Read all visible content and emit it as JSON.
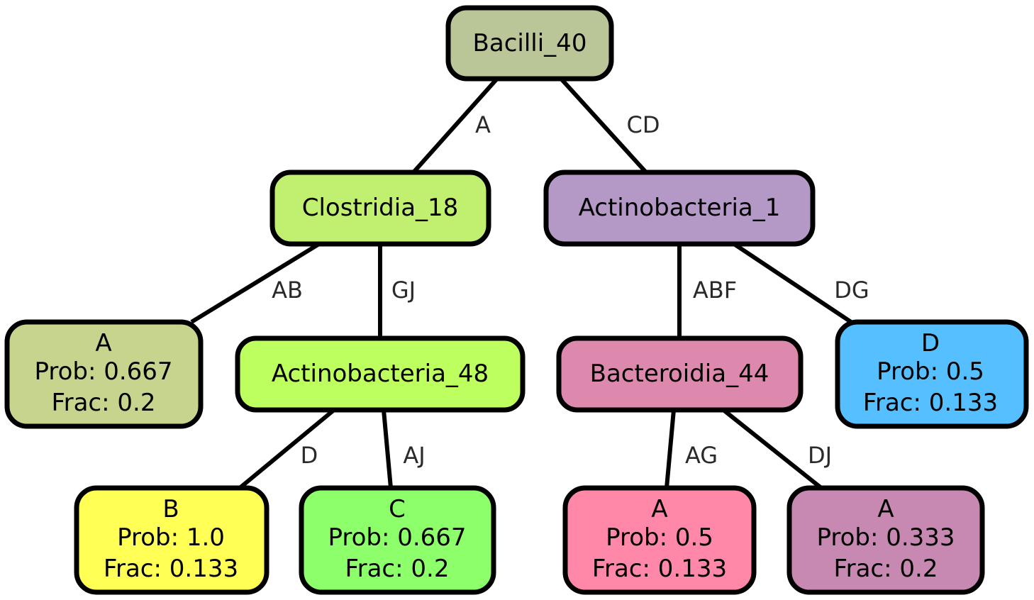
{
  "nodes": {
    "bacilli_40": {
      "lines": [
        "Bacilli_40"
      ],
      "color": "#bbc698"
    },
    "clostridia_18": {
      "lines": [
        "Clostridia_18"
      ],
      "color": "#c1ef6f"
    },
    "actinobacteria_1": {
      "lines": [
        "Actinobacteria_1"
      ],
      "color": "#b498c6"
    },
    "leaf_a_clostridia": {
      "lines": [
        "A",
        "Prob: 0.667",
        "Frac: 0.2"
      ],
      "color": "#c6d48e"
    },
    "actinobacteria_48": {
      "lines": [
        "Actinobacteria_48"
      ],
      "color": "#bdff5f"
    },
    "bacteroidia_44": {
      "lines": [
        "Bacteroidia_44"
      ],
      "color": "#dd88ad"
    },
    "leaf_d": {
      "lines": [
        "D",
        "Prob: 0.5",
        "Frac: 0.133"
      ],
      "color": "#55bfff"
    },
    "leaf_b": {
      "lines": [
        "B",
        "Prob: 1.0",
        "Frac: 0.133"
      ],
      "color": "#ffff55"
    },
    "leaf_c": {
      "lines": [
        "C",
        "Prob: 0.667",
        "Frac: 0.2"
      ],
      "color": "#8cff6a"
    },
    "leaf_a_bacteroidia_1": {
      "lines": [
        "A",
        "Prob: 0.5",
        "Frac: 0.133"
      ],
      "color": "#ff88a8"
    },
    "leaf_a_bacteroidia_2": {
      "lines": [
        "A",
        "Prob: 0.333",
        "Frac: 0.2"
      ],
      "color": "#c788b1"
    }
  },
  "edges": {
    "bacilli_clostridia": {
      "from": "bacilli_40",
      "to": "clostridia_18",
      "label": "A"
    },
    "bacilli_actino1": {
      "from": "bacilli_40",
      "to": "actinobacteria_1",
      "label": "CD"
    },
    "clostridia_leafA": {
      "from": "clostridia_18",
      "to": "leaf_a_clostridia",
      "label": "AB"
    },
    "clostridia_actino48": {
      "from": "clostridia_18",
      "to": "actinobacteria_48",
      "label": "GJ"
    },
    "actino1_bacteroidia": {
      "from": "actinobacteria_1",
      "to": "bacteroidia_44",
      "label": "ABF"
    },
    "actino1_leafD": {
      "from": "actinobacteria_1",
      "to": "leaf_d",
      "label": "DG"
    },
    "actino48_leafB": {
      "from": "actinobacteria_48",
      "to": "leaf_b",
      "label": "D"
    },
    "actino48_leafC": {
      "from": "actinobacteria_48",
      "to": "leaf_c",
      "label": "AJ"
    },
    "bacteroidia_leafA1": {
      "from": "bacteroidia_44",
      "to": "leaf_a_bacteroidia_1",
      "label": "AG"
    },
    "bacteroidia_leafA2": {
      "from": "bacteroidia_44",
      "to": "leaf_a_bacteroidia_2",
      "label": "DJ"
    }
  }
}
